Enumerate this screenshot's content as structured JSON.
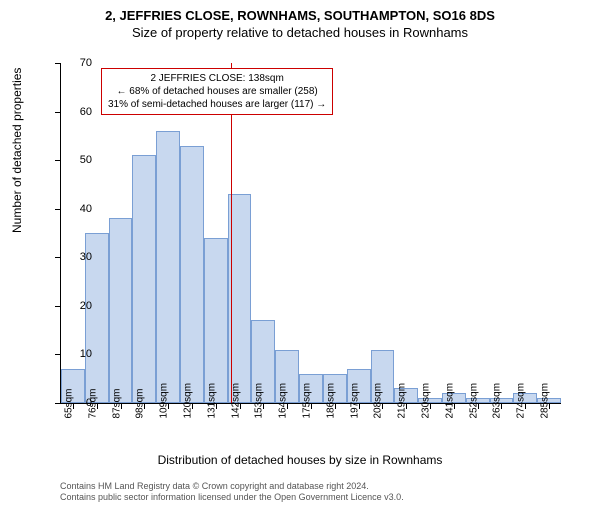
{
  "titles": {
    "main": "2, JEFFRIES CLOSE, ROWNHAMS, SOUTHAMPTON, SO16 8DS",
    "sub": "Size of property relative to detached houses in Rownhams"
  },
  "axes": {
    "ylabel": "Number of detached properties",
    "xlabel": "Distribution of detached houses by size in Rownhams",
    "ylim": [
      0,
      70
    ],
    "ytick_step": 10,
    "xtick_start": 65,
    "xtick_step": 11,
    "xtick_count": 21,
    "xtick_suffix": "sqm"
  },
  "chart": {
    "type": "histogram",
    "bar_fill": "#c8d8ef",
    "bar_stroke": "#7a9fd4",
    "background_color": "#ffffff",
    "marker_color": "#cc0000",
    "marker_x_sqm": 138,
    "values": [
      7,
      35,
      38,
      51,
      56,
      53,
      34,
      43,
      17,
      11,
      6,
      6,
      7,
      11,
      3,
      1,
      2,
      1,
      1,
      2,
      1
    ]
  },
  "annotation": {
    "line1": "2 JEFFRIES CLOSE: 138sqm",
    "line2": "← 68% of detached houses are smaller (258)",
    "line3": "31% of semi-detached houses are larger (117) →"
  },
  "footer": {
    "line1": "Contains HM Land Registry data © Crown copyright and database right 2024.",
    "line2": "Contains public sector information licensed under the Open Government Licence v3.0."
  }
}
